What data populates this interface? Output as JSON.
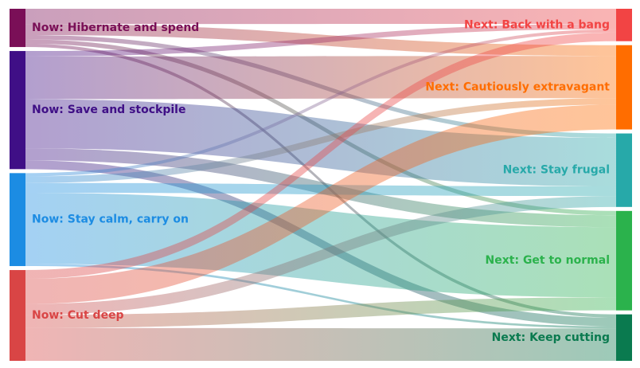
{
  "chart_data": {
    "type": "sankey",
    "sources": [
      {
        "id": "hibernate",
        "label": "Now: Hibernate and spend",
        "color": "#7a0f57"
      },
      {
        "id": "save",
        "label": "Now: Save and stockpile",
        "color": "#3f0f86"
      },
      {
        "id": "calm",
        "label": "Now: Stay calm, carry on",
        "color": "#1c8ce3"
      },
      {
        "id": "cut",
        "label": "Now: Cut deep",
        "color": "#d94545"
      }
    ],
    "targets": [
      {
        "id": "bang",
        "label": "Next: Back with a bang",
        "color": "#f24444"
      },
      {
        "id": "cautious",
        "label": "Next: Cautiously extravagant",
        "color": "#ff6d00"
      },
      {
        "id": "frugal",
        "label": "Next: Stay frugal",
        "color": "#27a9a9"
      },
      {
        "id": "normal",
        "label": "Next: Get to normal",
        "color": "#2bb24c"
      },
      {
        "id": "keep",
        "label": "Next: Keep cutting",
        "color": "#0a7a4f"
      }
    ],
    "flows": [
      {
        "source": "hibernate",
        "target": "bang",
        "value": 14
      },
      {
        "source": "hibernate",
        "target": "cautious",
        "value": 10
      },
      {
        "source": "hibernate",
        "target": "frugal",
        "value": 4
      },
      {
        "source": "hibernate",
        "target": "normal",
        "value": 4
      },
      {
        "source": "hibernate",
        "target": "keep",
        "value": 3
      },
      {
        "source": "save",
        "target": "bang",
        "value": 5
      },
      {
        "source": "save",
        "target": "cautious",
        "value": 39
      },
      {
        "source": "save",
        "target": "frugal",
        "value": 45
      },
      {
        "source": "save",
        "target": "normal",
        "value": 11
      },
      {
        "source": "save",
        "target": "keep",
        "value": 8
      },
      {
        "source": "calm",
        "target": "bang",
        "value": 3
      },
      {
        "source": "calm",
        "target": "cautious",
        "value": 6
      },
      {
        "source": "calm",
        "target": "frugal",
        "value": 9
      },
      {
        "source": "calm",
        "target": "normal",
        "value": 65
      },
      {
        "source": "calm",
        "target": "keep",
        "value": 2
      },
      {
        "source": "cut",
        "target": "bang",
        "value": 8
      },
      {
        "source": "cut",
        "target": "cautious",
        "value": 23
      },
      {
        "source": "cut",
        "target": "frugal",
        "value": 10
      },
      {
        "source": "cut",
        "target": "normal",
        "value": 12
      },
      {
        "source": "cut",
        "target": "keep",
        "value": 30
      }
    ]
  }
}
